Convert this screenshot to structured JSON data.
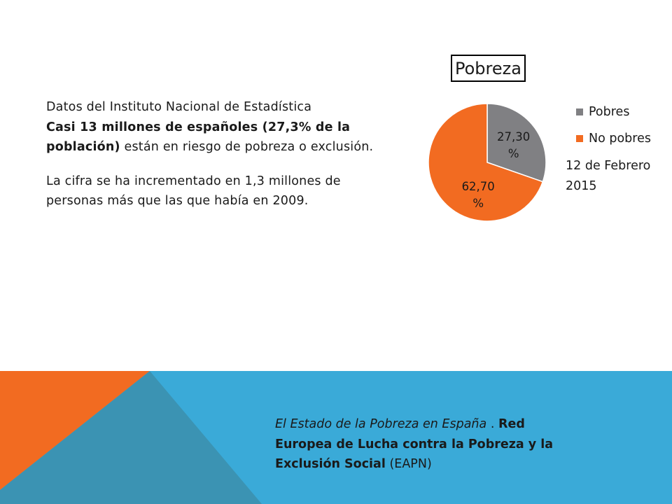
{
  "body": {
    "line1": "Datos del Instituto Nacional de Estadística",
    "bold_part": "Casi 13 millones de españoles (27,3% de la población)",
    "rest_part": " están en riesgo de pobreza o exclusión.",
    "para2": "La cifra se ha incrementado en 1,3 millones de personas más que las que había en 2009."
  },
  "date_note": "12 de Febrero 2015",
  "footer": {
    "italic_part": "El Estado de la Pobreza en España",
    "separator": " . ",
    "bold_part": "Red Europea de Lucha contra la Pobreza y la Exclusión Social",
    "tail": "  (EAPN)"
  },
  "colors": {
    "pobres": "#808083",
    "no_pobres": "#f26b21",
    "band_blue": "#3aaad8",
    "band_orange": "#f26b21",
    "band_teal": "#3b93b3"
  },
  "chart_data": {
    "type": "pie",
    "title": "Pobreza",
    "categories": [
      "Pobres",
      "No pobres"
    ],
    "values": [
      27.3,
      62.7
    ],
    "data_labels": [
      {
        "value": "27,30",
        "unit": "%"
      },
      {
        "value": "62,70",
        "unit": "%"
      }
    ],
    "legend_position": "right"
  }
}
